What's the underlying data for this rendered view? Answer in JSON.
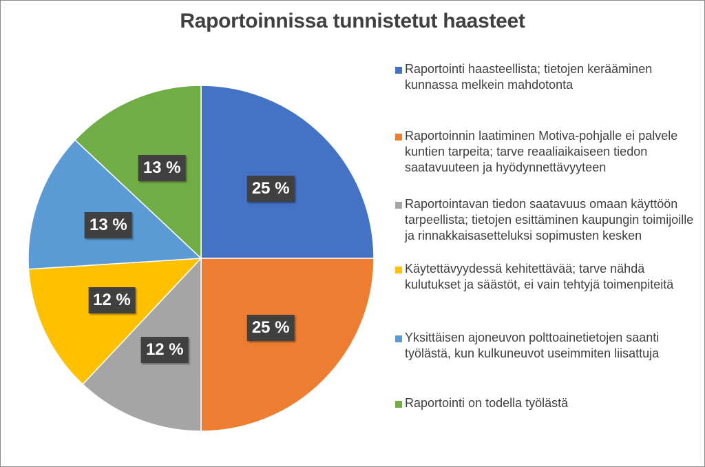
{
  "chart_data": {
    "type": "pie",
    "title": "Raportoinnissa tunnistetut haasteet",
    "legend_position": "right",
    "series": [
      {
        "name": "Raportointi haasteellista; tietojen kerääminen kunnassa melkein mahdotonta",
        "value": 25,
        "label": "25 %",
        "color": "#4472C4"
      },
      {
        "name": "Raportoinnin laatiminen Motiva-pohjalle ei palvele kuntien tarpeita; tarve reaaliaikaiseen tiedon saatavuuteen ja hyödynnettävyyteen",
        "value": 25,
        "label": "25 %",
        "color": "#ED7D31"
      },
      {
        "name": "Raportointavan tiedon saatavuus omaan käyttöön tarpeellista; tietojen esittäminen kaupungin toimijoille ja rinnakkaisasetteluksi sopimusten kesken",
        "value": 12,
        "label": "12 %",
        "color": "#A5A5A5"
      },
      {
        "name": "Käytettävyydessä kehitettävää; tarve nähdä kulutukset ja säästöt, ei vain tehtyjä toimenpiteitä",
        "value": 12,
        "label": "12 %",
        "color": "#FFC000"
      },
      {
        "name": "Yksittäisen ajoneuvon polttoainetietojen saanti työlästä, kun kulkuneuvot useimmiten liisattuja",
        "value": 13,
        "label": "13 %",
        "color": "#5B9BD5"
      },
      {
        "name": "Raportointi on todella työlästä",
        "value": 13,
        "label": "13 %",
        "color": "#70AD47"
      }
    ]
  }
}
